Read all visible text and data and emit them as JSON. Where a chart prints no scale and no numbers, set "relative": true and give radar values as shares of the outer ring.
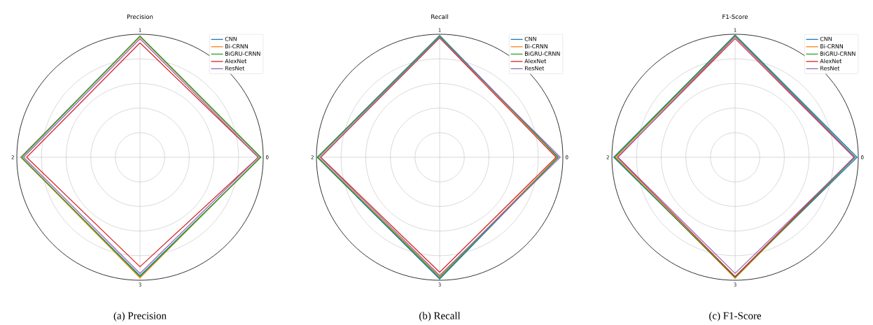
{
  "chart_data": [
    {
      "type": "radar",
      "title": "Precision",
      "categories": [
        "1",
        "0",
        "3",
        "2"
      ],
      "relative": true,
      "grid": true,
      "legend": "top right",
      "annotations": [
        "(a) Precision"
      ],
      "series": [
        {
          "name": "CNN",
          "color": "#1f77b4",
          "values": [
            0.985,
            0.98,
            0.963,
            0.967
          ]
        },
        {
          "name": "Bi-CRNN",
          "color": "#ff7f0e",
          "values": [
            0.98,
            0.975,
            0.98,
            0.965
          ]
        },
        {
          "name": "BiGRU-CRNN",
          "color": "#2ca02c",
          "values": [
            0.985,
            0.98,
            0.97,
            0.96
          ]
        },
        {
          "name": "AlexNet",
          "color": "#d62728",
          "values": [
            0.93,
            0.96,
            0.89,
            0.92
          ]
        },
        {
          "name": "ResNet",
          "color": "#9467bd",
          "values": [
            0.963,
            0.96,
            0.945,
            0.945
          ]
        }
      ]
    },
    {
      "type": "radar",
      "title": "Recall",
      "categories": [
        "1",
        "0",
        "3",
        "2"
      ],
      "relative": true,
      "grid": true,
      "legend": "top right",
      "annotations": [
        "(b) Recall"
      ],
      "series": [
        {
          "name": "CNN",
          "color": "#1f77b4",
          "values": [
            0.99,
            0.963,
            0.99,
            0.994
          ]
        },
        {
          "name": "Bi-CRNN",
          "color": "#ff7f0e",
          "values": [
            0.98,
            0.958,
            0.97,
            0.985
          ]
        },
        {
          "name": "BiGRU-CRNN",
          "color": "#2ca02c",
          "values": [
            0.985,
            0.96,
            0.98,
            0.99
          ]
        },
        {
          "name": "AlexNet",
          "color": "#d62728",
          "values": [
            0.97,
            0.945,
            0.935,
            0.965
          ]
        },
        {
          "name": "ResNet",
          "color": "#9467bd",
          "values": [
            0.975,
            0.978,
            0.96,
            0.97
          ]
        }
      ]
    },
    {
      "type": "radar",
      "title": "F1-Score",
      "categories": [
        "1",
        "0",
        "3",
        "2"
      ],
      "relative": true,
      "grid": true,
      "legend": "top right",
      "annotations": [
        "(c) F1-Score"
      ],
      "series": [
        {
          "name": "CNN",
          "color": "#1f77b4",
          "values": [
            0.994,
            0.99,
            0.975,
            0.985
          ]
        },
        {
          "name": "Bi-CRNN",
          "color": "#ff7f0e",
          "values": [
            0.985,
            0.97,
            0.983,
            0.97
          ]
        },
        {
          "name": "BiGRU-CRNN",
          "color": "#2ca02c",
          "values": [
            0.99,
            0.975,
            0.978,
            0.978
          ]
        },
        {
          "name": "AlexNet",
          "color": "#d62728",
          "values": [
            0.965,
            0.965,
            0.97,
            0.955
          ]
        },
        {
          "name": "ResNet",
          "color": "#9467bd",
          "values": [
            0.98,
            0.97,
            0.944,
            0.95
          ]
        }
      ]
    }
  ]
}
